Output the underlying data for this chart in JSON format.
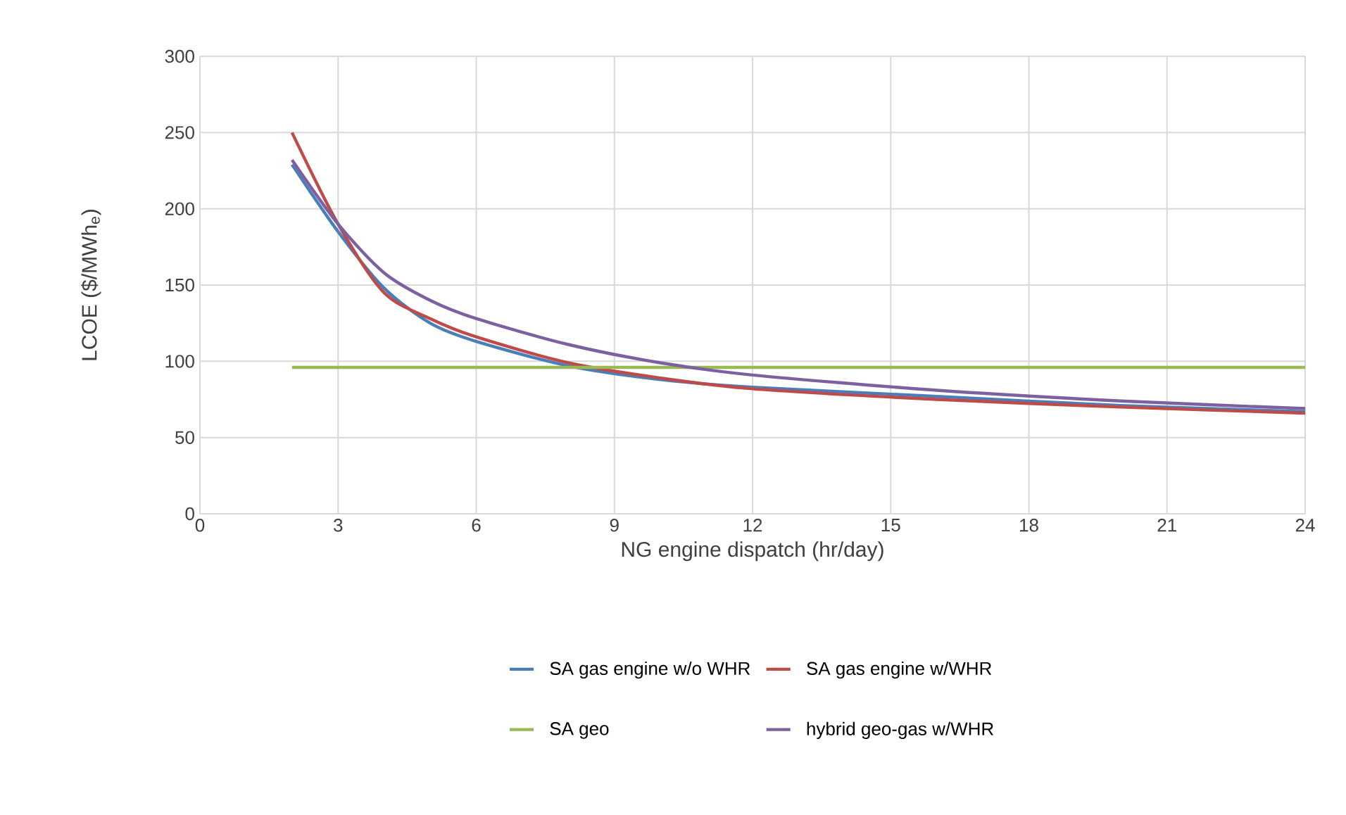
{
  "chart_data": {
    "type": "line",
    "xlabel": "NG engine dispatch (hr/day)",
    "ylabel": "LCOE ($/MWh$_{e}$)",
    "xlim": [
      0,
      24
    ],
    "xticks": [
      0,
      3,
      6,
      9,
      12,
      15,
      18,
      21,
      24
    ],
    "ylim": [
      0,
      300
    ],
    "yticks": [
      0,
      50,
      100,
      150,
      200,
      250,
      300
    ],
    "grid": true,
    "legend": "bottom",
    "marker": "none",
    "line_style": "solid",
    "series": [
      {
        "name": "SA gas engine w/o WHR",
        "color": "#4a7ebb",
        "x": [
          2,
          3,
          4,
          5,
          6,
          8,
          10,
          12,
          16,
          20,
          24
        ],
        "values": [
          229,
          185,
          148,
          125,
          113,
          97,
          88,
          83,
          77,
          71,
          67
        ]
      },
      {
        "name": "SA gas engine w/WHR",
        "color": "#be4b48",
        "x": [
          2,
          3,
          4,
          5,
          6,
          8,
          10,
          12,
          16,
          20,
          24
        ],
        "values": [
          250,
          190,
          145,
          128,
          116,
          99,
          89,
          82,
          75,
          70,
          66
        ]
      },
      {
        "name": "SA geo",
        "color": "#98b954",
        "x": [
          2,
          24
        ],
        "values": [
          96,
          96
        ]
      },
      {
        "name": "hybrid geo-gas w/WHR",
        "color": "#7d60a0",
        "x": [
          2,
          3,
          4,
          5,
          6,
          8,
          10,
          12,
          16,
          20,
          24
        ],
        "values": [
          232,
          190,
          158,
          140,
          128,
          111,
          99,
          91,
          81,
          74,
          69
        ]
      }
    ]
  }
}
